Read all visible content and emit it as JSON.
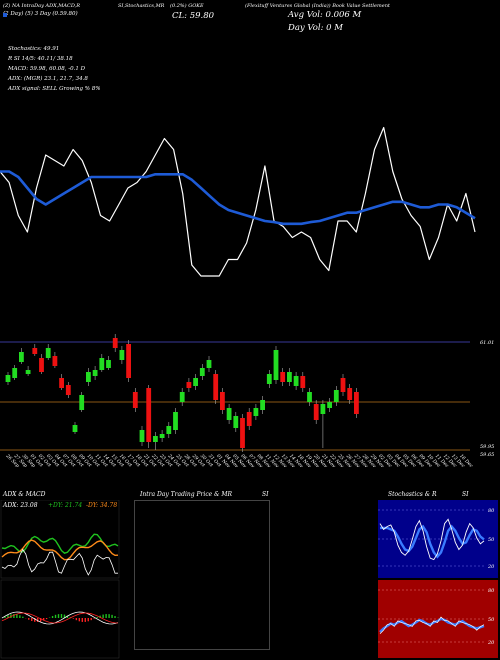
{
  "header": {
    "line1": [
      "(Z) NA IntraDay ADX,MACD,R",
      "SI,Stochastics,MR",
      "(0.2%) GOKE",
      "(Flexituff Ventures Global (India)) Book Value Settlement"
    ],
    "line2": "(2 Day) (5) 3 Day (0.59.80)",
    "close": "CL: 59.80",
    "avg_vol": "Avg Vol: 0.006  M",
    "day_vol": "Day Vol: 0   M"
  },
  "indicators": {
    "stoch": "Stochastics: 49.91",
    "rsi": "R                    SI 14/5: 40.11/ 38.18",
    "macd": "MACD: 59.98, 60.08, -0.1  D",
    "adx": "ADX:                           (MGR) 23.1, 21.7, 34.8",
    "adx_signal": "ADX  signal: SELL  Growing % 8%"
  },
  "colors": {
    "background": "#000000",
    "price_line": "#ffffff",
    "ma_line": "#1e5bd6",
    "bull": "#22dd22",
    "bear": "#ee1111",
    "level_line": "#b8731a",
    "blue_panel": "#00008b",
    "red_panel": "#a00000"
  },
  "chart_data": [
    {
      "type": "line",
      "name": "price_overlay",
      "series": [
        {
          "name": "",
          "values": [
            61.2,
            61.0,
            60.4,
            60.1,
            60.9,
            61.5,
            61.4,
            61.3,
            61.6,
            61.4,
            61.0,
            60.4,
            60.3,
            60.6,
            60.9,
            61.0,
            61.2,
            61.5,
            61.8,
            61.6,
            60.8,
            59.5,
            59.3,
            59.3,
            59.3,
            59.6,
            59.6,
            59.9,
            60.5,
            61.3,
            60.3,
            60.2,
            60.0,
            60.1,
            60.0,
            59.6,
            59.4,
            60.3,
            60.3,
            60.1,
            60.8,
            61.6,
            62.0,
            61.2,
            60.7,
            60.4,
            60.2,
            59.6,
            60.0,
            60.6,
            60.3,
            60.8,
            60.1
          ]
        },
        {
          "name": "",
          "values": [
            61.2,
            61.2,
            61.1,
            60.9,
            60.7,
            60.6,
            60.7,
            60.8,
            60.9,
            61.0,
            61.1,
            61.1,
            61.1,
            61.1,
            61.1,
            61.1,
            61.1,
            61.15,
            61.15,
            61.15,
            61.15,
            61.05,
            60.9,
            60.75,
            60.6,
            60.5,
            60.45,
            60.4,
            60.35,
            60.3,
            60.28,
            60.25,
            60.25,
            60.25,
            60.28,
            60.3,
            60.35,
            60.4,
            60.45,
            60.45,
            60.5,
            60.55,
            60.6,
            60.65,
            60.65,
            60.6,
            60.55,
            60.55,
            60.6,
            60.6,
            60.55,
            60.45,
            60.35
          ]
        }
      ]
    },
    {
      "type": "bar",
      "name": "candlestick",
      "ylabels": [
        "61.01",
        "59.95",
        "59.65"
      ],
      "xlabels": [
        "26 Sep",
        "27 Sep",
        "30 Sep",
        "01 Oct",
        "02 Oct",
        "03 Oct",
        "04 Oct",
        "07 Oct",
        "08 Oct",
        "09 Oct",
        "10 Oct",
        "11 Oct",
        "14 Oct",
        "15 Oct",
        "16 Oct",
        "17 Oct",
        "18 Oct",
        "21 Oct",
        "22 Oct",
        "23 Oct",
        "24 Oct",
        "25 Oct",
        "28 Oct",
        "29 Oct",
        "30 Oct",
        "31 Oct",
        "01 Nov",
        "04 Nov",
        "05 Nov",
        "06 Nov",
        "07 Nov",
        "08 Nov",
        "11 Nov",
        "12 Nov",
        "13 Nov",
        "14 Nov",
        "18 Nov",
        "19 Nov",
        "20 Nov",
        "21 Nov",
        "22 Nov",
        "25 Nov",
        "26 Nov",
        "27 Nov",
        "28 Nov",
        "29 Nov",
        "02 Dec",
        "03 Dec",
        "04 Dec",
        "05 Dec",
        "06 Dec",
        "09 Dec",
        "10 Dec",
        "11 Dec",
        "12 Dec",
        "13 Dec",
        "16 Dec"
      ]
    },
    {
      "type": "line",
      "name": "adx_macd",
      "title": "ADX  & MACD",
      "adx_readout": "ADX: 23.08",
      "pdi_readout": "+DY: 21.74",
      "mdi_readout": "-DY: 34.78"
    },
    {
      "type": "line",
      "name": "intraday",
      "title": "Intra  Day Trading Price  & MR",
      "title_suffix": "SI"
    },
    {
      "type": "line",
      "name": "stochastics_rsi",
      "title": "Stochastics & R",
      "title_suffix": "SI",
      "stoch_levels": [
        "80",
        "50",
        "20"
      ],
      "rsi_levels": [
        "80",
        "50",
        "20"
      ]
    }
  ]
}
